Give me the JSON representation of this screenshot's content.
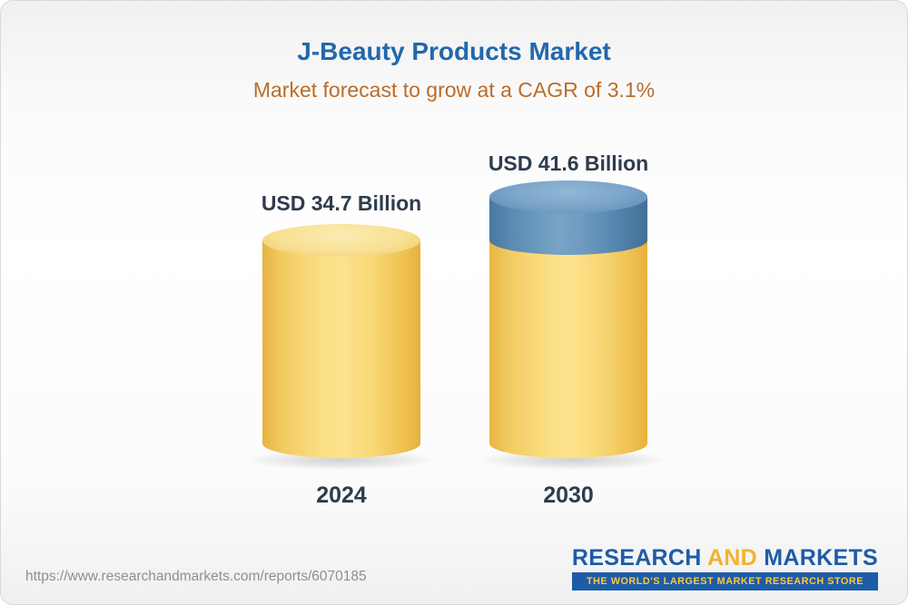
{
  "chart_data": {
    "type": "bar",
    "title": "J-Beauty Products Market",
    "subtitle": "Market forecast to grow at a CAGR of 3.1%",
    "cagr": "3.1%",
    "categories": [
      "2024",
      "2030"
    ],
    "values": [
      34.7,
      41.6
    ],
    "unit": "USD Billion",
    "value_labels": [
      "USD 34.7 Billion",
      "USD 41.6 Billion"
    ],
    "legend": "none",
    "axes": "none (pictorial 3D cylinder bars, heights proportional to values)",
    "colors": {
      "bar_body": "#F6CF6B",
      "increment_band": "#6F9BC2",
      "title": "#2268AB",
      "subtitle": "#BC6C28",
      "label_text": "#2E3C4D"
    }
  },
  "footer": {
    "url": "https://www.researchandmarkets.com/reports/6070185",
    "logo": {
      "research": "RESEARCH",
      "and": "AND",
      "markets": "MARKETS",
      "tagline": "THE WORLD'S LARGEST MARKET RESEARCH STORE"
    }
  }
}
